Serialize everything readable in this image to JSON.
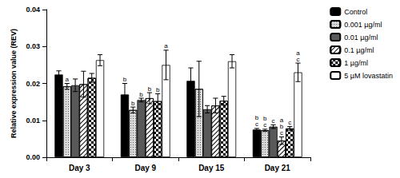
{
  "chart_data": {
    "type": "bar",
    "y_label": "Relative expression value (REV)",
    "categories": [
      "Day 3",
      "Day 9",
      "Day 15",
      "Day 21"
    ],
    "ylim": [
      0,
      0.04
    ],
    "yticks": [
      {
        "value": 0,
        "label": "0.00"
      },
      {
        "value": 0.01,
        "label": "0.01"
      },
      {
        "value": 0.02,
        "label": "0.02"
      },
      {
        "value": 0.03,
        "label": "0.03"
      },
      {
        "value": 0.04,
        "label": "0.04"
      }
    ],
    "grid": false,
    "legend": "right",
    "series": [
      {
        "name": "Control",
        "color": "#000000",
        "values": [
          0.0224,
          0.017,
          0.0207,
          0.0075
        ],
        "errors": [
          0.001,
          0.003,
          0.0035,
          0.0003
        ],
        "annotations": [
          null,
          [
            "b"
          ],
          null,
          [
            "b",
            "c"
          ]
        ]
      },
      {
        "name": "0.001 µg/ml",
        "color": "#d9d9d9",
        "values": [
          0.0192,
          0.0128,
          0.0185,
          0.0073
        ],
        "errors": [
          0.0008,
          0.0008,
          0.0075,
          0.0003
        ],
        "annotations": [
          [
            "a"
          ],
          [
            "b"
          ],
          null,
          [
            "b",
            "c"
          ]
        ]
      },
      {
        "name": "0.01 µg/ml",
        "color": "#595959",
        "values": [
          0.0195,
          0.0155,
          0.013,
          0.0083
        ],
        "errors": [
          0.0017,
          0.0005,
          0.001,
          0.0005
        ],
        "annotations": [
          null,
          [
            "b"
          ],
          null,
          [
            "c"
          ]
        ]
      },
      {
        "name": "0.1 µg/ml",
        "color": "#ffffff",
        "values": [
          0.0198,
          0.016,
          0.014,
          0.0045
        ],
        "errors": [
          0.0035,
          0.0015,
          0.002,
          0.001
        ],
        "annotations": [
          null,
          [
            "b"
          ],
          null,
          [
            "a",
            "b",
            "c"
          ]
        ]
      },
      {
        "name": "1 µg/ml",
        "color": "#ffffff",
        "values": [
          0.0215,
          0.0152,
          0.0153,
          0.0078
        ],
        "errors": [
          0.0012,
          0.002,
          0.0012,
          0.0005
        ],
        "annotations": [
          null,
          [
            "b"
          ],
          null,
          [
            "c"
          ]
        ]
      },
      {
        "name": "5 µM lovastatin",
        "color": "#ffffff",
        "values": [
          0.0263,
          0.025,
          0.026,
          0.023
        ],
        "errors": [
          0.0015,
          0.004,
          0.0018,
          0.0025
        ],
        "annotations": [
          null,
          [
            "a"
          ],
          null,
          [
            "a",
            "c"
          ]
        ]
      }
    ]
  }
}
